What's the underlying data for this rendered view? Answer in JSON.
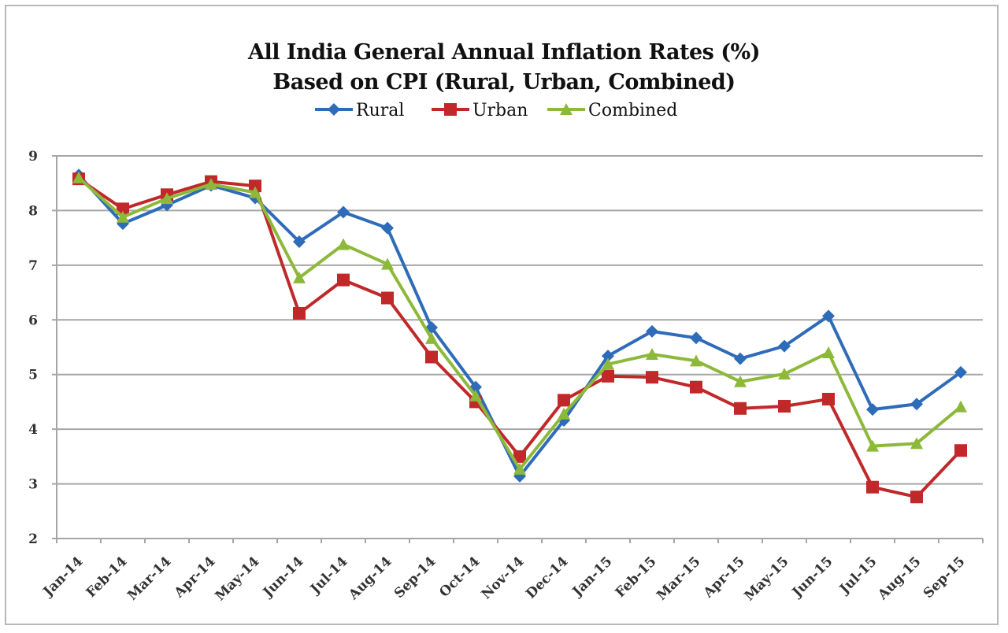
{
  "chart_data": {
    "type": "line",
    "title": [
      "All India General Annual Inflation Rates (%)",
      "Based on CPI (Rural, Urban, Combined)"
    ],
    "xlabel": "",
    "ylabel": "",
    "ylim": [
      2,
      9
    ],
    "yticks": [
      2,
      3,
      4,
      5,
      6,
      7,
      8,
      9
    ],
    "grid": true,
    "legend_position": "top-center",
    "categories": [
      "Jan-14",
      "Feb-14",
      "Mar-14",
      "Apr-14",
      "May-14",
      "Jun-14",
      "Jul-14",
      "Aug-14",
      "Sep-14",
      "Oct-14",
      "Nov-14",
      "Dec-14",
      "Jan-15",
      "Feb-15",
      "Mar-15",
      "Apr-15",
      "May-15",
      "Jun-15",
      "Jul-15",
      "Aug-15",
      "Sep-15"
    ],
    "series": [
      {
        "name": "Rural",
        "color": "#2e6bb8",
        "marker": "diamond",
        "values": [
          8.65,
          7.76,
          8.1,
          8.46,
          8.23,
          7.43,
          7.97,
          7.68,
          5.86,
          4.77,
          3.14,
          4.16,
          5.34,
          5.79,
          5.67,
          5.29,
          5.52,
          6.07,
          4.36,
          4.46,
          5.04
        ]
      },
      {
        "name": "Urban",
        "color": "#c0282a",
        "marker": "square",
        "values": [
          8.58,
          8.03,
          8.29,
          8.53,
          8.45,
          6.12,
          6.73,
          6.4,
          5.32,
          4.5,
          3.5,
          4.53,
          4.97,
          4.95,
          4.77,
          4.38,
          4.42,
          4.55,
          2.94,
          2.76,
          3.61
        ]
      },
      {
        "name": "Combined",
        "color": "#8db93a",
        "marker": "triangle",
        "values": [
          8.6,
          7.88,
          8.22,
          8.48,
          8.33,
          6.77,
          7.38,
          7.02,
          5.66,
          4.61,
          3.27,
          4.28,
          5.19,
          5.37,
          5.25,
          4.87,
          5.01,
          5.4,
          3.69,
          3.74,
          4.41
        ]
      }
    ]
  }
}
